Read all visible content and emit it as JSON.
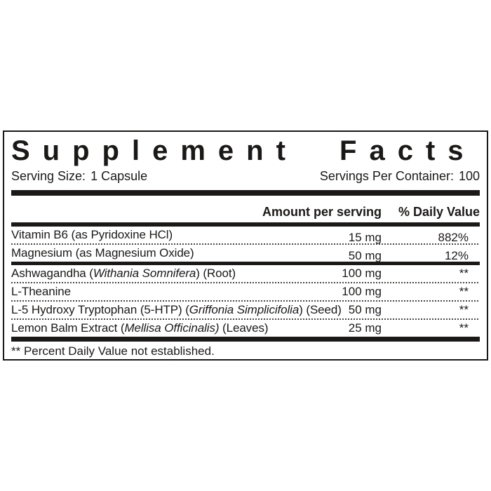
{
  "label": {
    "title": "Supplement Facts",
    "serving_size_label": "Serving Size:",
    "serving_size_value": "1 Capsule",
    "servings_per_container_label": "Servings Per Container:",
    "servings_per_container_value": "100",
    "columns": {
      "amount_header": "Amount per serving",
      "daily_value_header": "% Daily Value"
    },
    "rows": [
      {
        "name_parts": [
          {
            "text": "Vitamin B6 (as Pyridoxine HCl)"
          }
        ],
        "amount": "15 mg",
        "daily_value": "882%",
        "separator_after": "dotted"
      },
      {
        "name_parts": [
          {
            "text": "Magnesium (as Magnesium Oxide)"
          }
        ],
        "amount": "50 mg",
        "daily_value": "12%",
        "separator_after": "thick"
      },
      {
        "name_parts": [
          {
            "text": "Ashwagandha ("
          },
          {
            "text": "Withania Somnifera",
            "italic": true
          },
          {
            "text": ") (Root)"
          }
        ],
        "amount": "100 mg",
        "daily_value": "**",
        "separator_after": "dotted"
      },
      {
        "name_parts": [
          {
            "text": "L-Theanine"
          }
        ],
        "amount": "100 mg",
        "daily_value": "**",
        "separator_after": "dotted"
      },
      {
        "name_parts": [
          {
            "text": "L-5 Hydroxy Tryptophan (5-HTP) ("
          },
          {
            "text": "Griffonia Simplicifolia",
            "italic": true
          },
          {
            "text": ") (Seed)"
          }
        ],
        "amount": "50 mg",
        "daily_value": "**",
        "separator_after": "dotted"
      },
      {
        "name_parts": [
          {
            "text": "Lemon Balm Extract ("
          },
          {
            "text": "Mellisa Officinalis)",
            "italic": true
          },
          {
            "text": " (Leaves)"
          }
        ],
        "amount": "25 mg",
        "daily_value": "**",
        "separator_after": "bar"
      }
    ],
    "footnote": "** Percent Daily Value not established.",
    "colors": {
      "ink": "#1b1918",
      "background": "#ffffff"
    }
  }
}
